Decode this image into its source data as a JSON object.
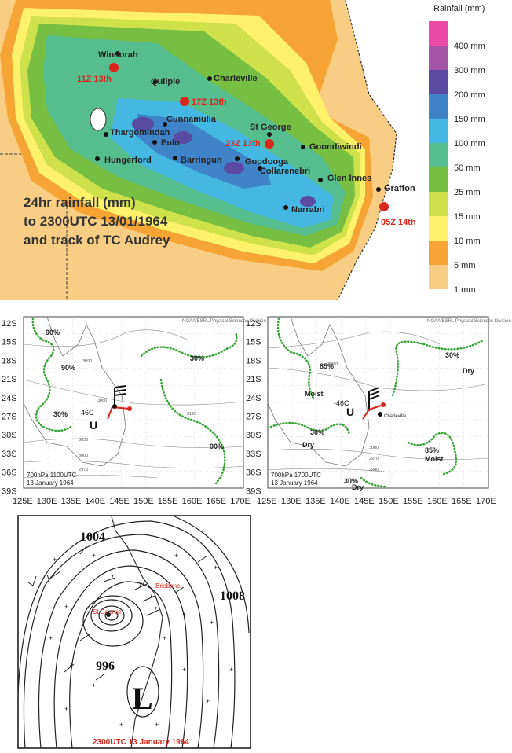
{
  "rainfall_map": {
    "legend_title": "Rainfall (mm)",
    "legend": [
      {
        "label": "400 mm",
        "color": "#ea4aa6"
      },
      {
        "label": "300 mm",
        "color": "#a455a8"
      },
      {
        "label": "200 mm",
        "color": "#5a4aa3"
      },
      {
        "label": "150 mm",
        "color": "#3f83c9"
      },
      {
        "label": "100 mm",
        "color": "#44b7e2"
      },
      {
        "label": "50 mm",
        "color": "#56bd8f"
      },
      {
        "label": "25 mm",
        "color": "#77bf43"
      },
      {
        "label": "15 mm",
        "color": "#cfe14a"
      },
      {
        "label": "10 mm",
        "color": "#fff26a"
      },
      {
        "label": "5 mm",
        "color": "#f6a535"
      },
      {
        "label": "1 mm",
        "color": "#f9cd84"
      }
    ],
    "places": [
      "Windorah",
      "Charleville",
      "Quilpie",
      "Cunnamulla",
      "St George",
      "Thargomindah",
      "Eulo",
      "Goondiwindi",
      "Hungerford",
      "Barringun",
      "Goodooga",
      "Collarenebri",
      "Glen Innes",
      "Grafton",
      "Narrabri"
    ],
    "track_labels": [
      "11Z 13th",
      "17Z 13th",
      "23Z 13th",
      "05Z 14th"
    ],
    "caption_lines": [
      "24hr rainfall (mm)",
      "to 2300UTC 13/01/1964",
      "and track of TC Audrey"
    ]
  },
  "upper_charts": {
    "source": "NOAA/ESRL Physical Sciences Division",
    "lat_ticks": [
      "12S",
      "15S",
      "18S",
      "21S",
      "24S",
      "27S",
      "30S",
      "33S",
      "36S",
      "39S"
    ],
    "lon_ticks": [
      "125E",
      "130E",
      "135E",
      "140E",
      "145E",
      "150E",
      "155E",
      "160E",
      "165E",
      "170E"
    ],
    "left": {
      "title_line1": "700hPa 1100UTC",
      "title_line2": "13 January 1964",
      "labels": [
        "90%",
        "90%",
        "30%",
        "30%",
        "90%",
        "-46C",
        "U"
      ],
      "contours": [
        "3090",
        "3060",
        "3030",
        "3000",
        "2970",
        "3120"
      ]
    },
    "right": {
      "title_line1": "700hPa 1700UTC",
      "title_line2": "13 January 1964",
      "labels": [
        "85%",
        "Moist",
        "-46C",
        "U",
        "Charleville",
        "30%",
        "Dry",
        "30%",
        "Dry",
        "85%",
        "Moist",
        "30%",
        "Dry"
      ],
      "contours": [
        "3060",
        "3000",
        "2970",
        "2940"
      ]
    }
  },
  "surface_chart": {
    "pressures": [
      "1004",
      "1008",
      "996"
    ],
    "low_symbol": "L",
    "cities": [
      "Brisbane",
      "St George"
    ],
    "caption": "2300UTC 13 January 1964"
  },
  "colors": {
    "track_red": "#d9271e",
    "moisture_green": "#3aa53a",
    "caption_dark": "#333333"
  }
}
